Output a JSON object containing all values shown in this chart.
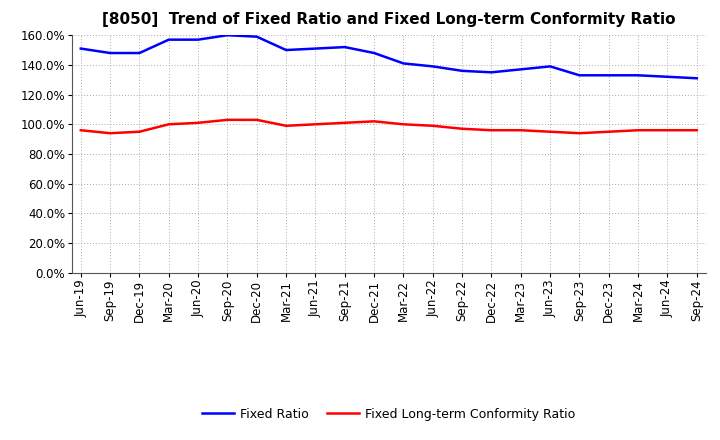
{
  "title": "[8050]  Trend of Fixed Ratio and Fixed Long-term Conformity Ratio",
  "x_labels": [
    "Jun-19",
    "Sep-19",
    "Dec-19",
    "Mar-20",
    "Jun-20",
    "Sep-20",
    "Dec-20",
    "Mar-21",
    "Jun-21",
    "Sep-21",
    "Dec-21",
    "Mar-22",
    "Jun-22",
    "Sep-22",
    "Dec-22",
    "Mar-23",
    "Jun-23",
    "Sep-23",
    "Dec-23",
    "Mar-24",
    "Jun-24",
    "Sep-24"
  ],
  "fixed_ratio": [
    151,
    148,
    148,
    157,
    157,
    160,
    159,
    150,
    151,
    152,
    148,
    141,
    139,
    136,
    135,
    137,
    139,
    133,
    133,
    133,
    132,
    131
  ],
  "fixed_lt_ratio": [
    96,
    94,
    95,
    100,
    101,
    103,
    103,
    99,
    100,
    101,
    102,
    100,
    99,
    97,
    96,
    96,
    95,
    94,
    95,
    96,
    96,
    96
  ],
  "ylim": [
    0,
    160
  ],
  "yticks": [
    0,
    20,
    40,
    60,
    80,
    100,
    120,
    140,
    160
  ],
  "fixed_ratio_color": "#0000FF",
  "fixed_lt_ratio_color": "#FF0000",
  "background_color": "#FFFFFF",
  "plot_bg_color": "#FFFFFF",
  "grid_color": "#AAAAAA",
  "legend_fixed_ratio": "Fixed Ratio",
  "legend_fixed_lt_ratio": "Fixed Long-term Conformity Ratio",
  "line_width": 1.8,
  "title_fontsize": 11,
  "tick_fontsize": 8.5,
  "legend_fontsize": 9
}
